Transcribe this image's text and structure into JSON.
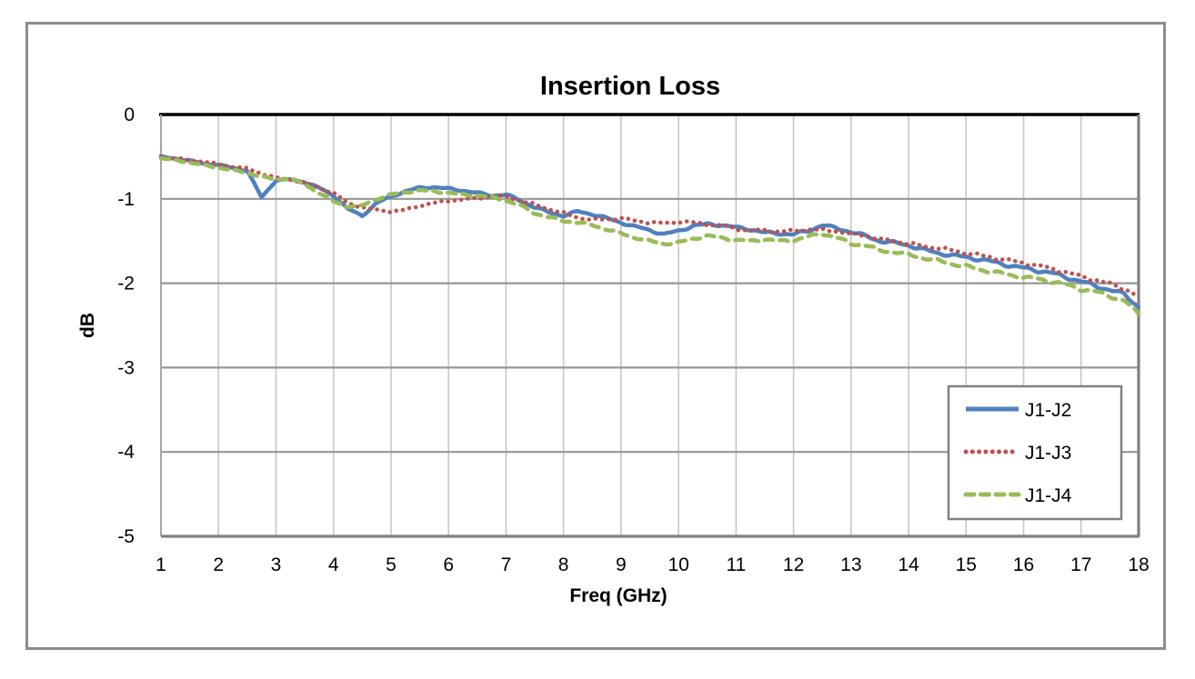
{
  "chart_data": {
    "type": "line",
    "title": "Insertion Loss",
    "xlabel": "Freq (GHz)",
    "ylabel": "dB",
    "xlim": [
      1,
      18
    ],
    "ylim": [
      -5,
      0
    ],
    "x_ticks": [
      "1",
      "2",
      "3",
      "4",
      "5",
      "6",
      "7",
      "8",
      "9",
      "10",
      "11",
      "12",
      "13",
      "14",
      "15",
      "16",
      "17",
      "18"
    ],
    "y_ticks": [
      "0",
      "-1",
      "-2",
      "-3",
      "-4",
      "-5"
    ],
    "grid": true,
    "legend_position": "inside-right",
    "axis_colors": {
      "zero_line": "#000000",
      "h_gridline": "#969696",
      "v_gridline": "#c6c6c6",
      "plot_frame": "#808080",
      "left_edge": "#a6a6a6",
      "outer_border": "#8c8c8c",
      "legend_border": "#808080"
    },
    "x": [
      1,
      1.25,
      1.5,
      1.75,
      2,
      2.25,
      2.5,
      2.75,
      3,
      3.25,
      3.5,
      3.75,
      4,
      4.25,
      4.5,
      4.75,
      5,
      5.25,
      5.5,
      5.75,
      6,
      6.25,
      6.5,
      6.75,
      7,
      7.25,
      7.5,
      7.75,
      8,
      8.25,
      8.5,
      8.75,
      9,
      9.25,
      9.5,
      9.75,
      10,
      10.25,
      10.5,
      10.75,
      11,
      11.25,
      11.5,
      11.75,
      12,
      12.25,
      12.5,
      12.75,
      13,
      13.25,
      13.5,
      13.75,
      14,
      14.25,
      14.5,
      14.75,
      15,
      15.25,
      15.5,
      15.75,
      16,
      16.25,
      16.5,
      16.75,
      17,
      17.25,
      17.5,
      17.75,
      18
    ],
    "series": [
      {
        "name": "J1-J2",
        "color": "#4F81BD",
        "line_style": "solid",
        "values": [
          -0.5,
          -0.52,
          -0.55,
          -0.58,
          -0.6,
          -0.63,
          -0.67,
          -0.98,
          -0.78,
          -0.77,
          -0.8,
          -0.87,
          -0.96,
          -1.12,
          -1.2,
          -1.05,
          -0.97,
          -0.91,
          -0.87,
          -0.86,
          -0.88,
          -0.9,
          -0.93,
          -0.96,
          -0.95,
          -1.02,
          -1.1,
          -1.16,
          -1.2,
          -1.15,
          -1.18,
          -1.23,
          -1.28,
          -1.33,
          -1.37,
          -1.42,
          -1.38,
          -1.32,
          -1.3,
          -1.31,
          -1.34,
          -1.36,
          -1.4,
          -1.41,
          -1.42,
          -1.38,
          -1.31,
          -1.35,
          -1.39,
          -1.44,
          -1.5,
          -1.52,
          -1.55,
          -1.6,
          -1.64,
          -1.67,
          -1.69,
          -1.72,
          -1.75,
          -1.79,
          -1.82,
          -1.85,
          -1.88,
          -1.93,
          -1.98,
          -2.03,
          -2.08,
          -2.13,
          -2.28
        ]
      },
      {
        "name": "J1-J3",
        "color": "#C0504D",
        "line_style": "dotted",
        "values": [
          -0.5,
          -0.52,
          -0.54,
          -0.56,
          -0.59,
          -0.62,
          -0.64,
          -0.7,
          -0.75,
          -0.77,
          -0.81,
          -0.87,
          -0.93,
          -1.05,
          -1.1,
          -1.13,
          -1.15,
          -1.13,
          -1.08,
          -1.05,
          -1.02,
          -1.01,
          -0.99,
          -0.97,
          -0.97,
          -1.02,
          -1.07,
          -1.12,
          -1.17,
          -1.22,
          -1.25,
          -1.24,
          -1.23,
          -1.26,
          -1.28,
          -1.29,
          -1.27,
          -1.28,
          -1.3,
          -1.32,
          -1.35,
          -1.38,
          -1.37,
          -1.39,
          -1.38,
          -1.36,
          -1.37,
          -1.38,
          -1.42,
          -1.43,
          -1.48,
          -1.5,
          -1.53,
          -1.56,
          -1.58,
          -1.61,
          -1.64,
          -1.67,
          -1.7,
          -1.73,
          -1.76,
          -1.79,
          -1.83,
          -1.87,
          -1.92,
          -1.96,
          -2.01,
          -2.06,
          -2.16
        ]
      },
      {
        "name": "J1-J4",
        "color": "#9BBB59",
        "line_style": "dashed",
        "values": [
          -0.52,
          -0.54,
          -0.57,
          -0.6,
          -0.63,
          -0.66,
          -0.69,
          -0.74,
          -0.77,
          -0.76,
          -0.83,
          -0.93,
          -1.03,
          -1.09,
          -1.08,
          -1.0,
          -0.95,
          -0.92,
          -0.9,
          -0.91,
          -0.93,
          -0.95,
          -0.96,
          -0.98,
          -1.02,
          -1.08,
          -1.17,
          -1.22,
          -1.26,
          -1.28,
          -1.31,
          -1.36,
          -1.41,
          -1.46,
          -1.5,
          -1.53,
          -1.52,
          -1.47,
          -1.44,
          -1.46,
          -1.49,
          -1.5,
          -1.48,
          -1.5,
          -1.49,
          -1.45,
          -1.41,
          -1.46,
          -1.53,
          -1.55,
          -1.61,
          -1.63,
          -1.66,
          -1.7,
          -1.73,
          -1.77,
          -1.8,
          -1.84,
          -1.87,
          -1.9,
          -1.93,
          -1.95,
          -1.98,
          -2.02,
          -2.07,
          -2.1,
          -2.15,
          -2.21,
          -2.36
        ]
      }
    ]
  }
}
